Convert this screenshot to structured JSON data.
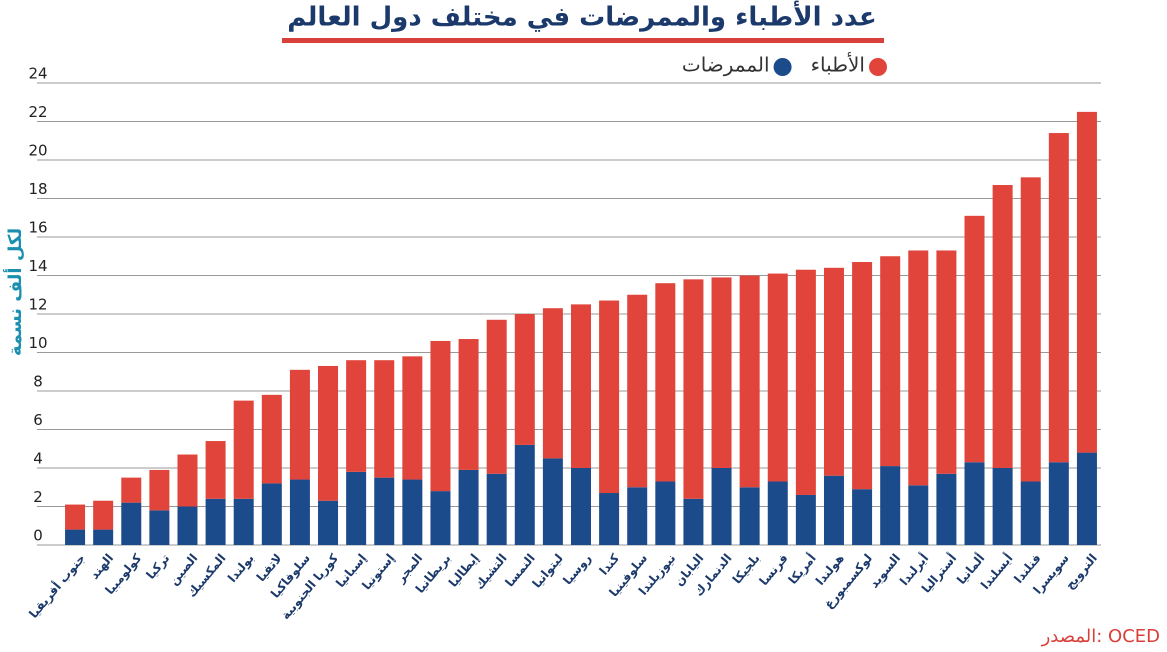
{
  "chart_data": {
    "type": "stacked_bar",
    "title": "عدد الأطباء والممرضات في مختلف دول العالم",
    "y_label": "لكل ألف نسمة",
    "source": "المصدر: OCED",
    "categories": [
      "جنوب أفريقيا",
      "الهند",
      "كولومبيا",
      "تركيا",
      "الصين",
      "المكسيك",
      "بولندا",
      "لاتفيا",
      "سلوفاكيا",
      "كوريا الجنوبية",
      "إسبانيا",
      "إستونيا",
      "المجر",
      "بريطانيا",
      "إيطاليا",
      "التشيك",
      "النمسا",
      "ليتوانيا",
      "روسيا",
      "كندا",
      "سلوفينيا",
      "نيوزيلندا",
      "اليابان",
      "الدنمارك",
      "بلجيكا",
      "فرنسا",
      "أمريكا",
      "هولندا",
      "لوكسمبورغ",
      "السويد",
      "أيرلندا",
      "أستراليا",
      "ألمانيا",
      "أيسلندا",
      "فنلندا",
      "سويسرا",
      "النرويج"
    ],
    "series": [
      {
        "name": "الممرضات",
        "color": "#1c4b8c",
        "values": [
          0.8,
          0.8,
          2.2,
          1.8,
          2.0,
          2.4,
          2.4,
          3.2,
          3.4,
          2.3,
          3.8,
          3.5,
          3.4,
          2.8,
          3.9,
          3.7,
          5.2,
          4.5,
          4.0,
          2.7,
          3.0,
          3.3,
          2.4,
          4.0,
          3.0,
          3.3,
          2.6,
          3.6,
          2.9,
          4.1,
          3.1,
          3.7,
          4.3,
          4.0,
          3.3,
          4.3,
          4.8
        ]
      },
      {
        "name": "الأطباء",
        "color": "#e0443a",
        "values": [
          1.3,
          1.5,
          1.3,
          2.1,
          2.7,
          3.0,
          5.1,
          4.6,
          5.7,
          7.0,
          5.8,
          6.1,
          6.4,
          7.8,
          6.8,
          8.0,
          6.8,
          7.8,
          8.5,
          10.0,
          10.0,
          10.3,
          11.4,
          9.9,
          11.0,
          10.8,
          11.7,
          10.8,
          11.8,
          10.9,
          12.2,
          11.6,
          12.8,
          14.7,
          15.8,
          17.1,
          17.7
        ]
      }
    ],
    "ylim": [
      0,
      24
    ],
    "yticks": [
      0,
      2,
      4,
      6,
      8,
      10,
      12,
      14,
      16,
      18,
      20,
      22,
      24
    ],
    "grid": true
  }
}
